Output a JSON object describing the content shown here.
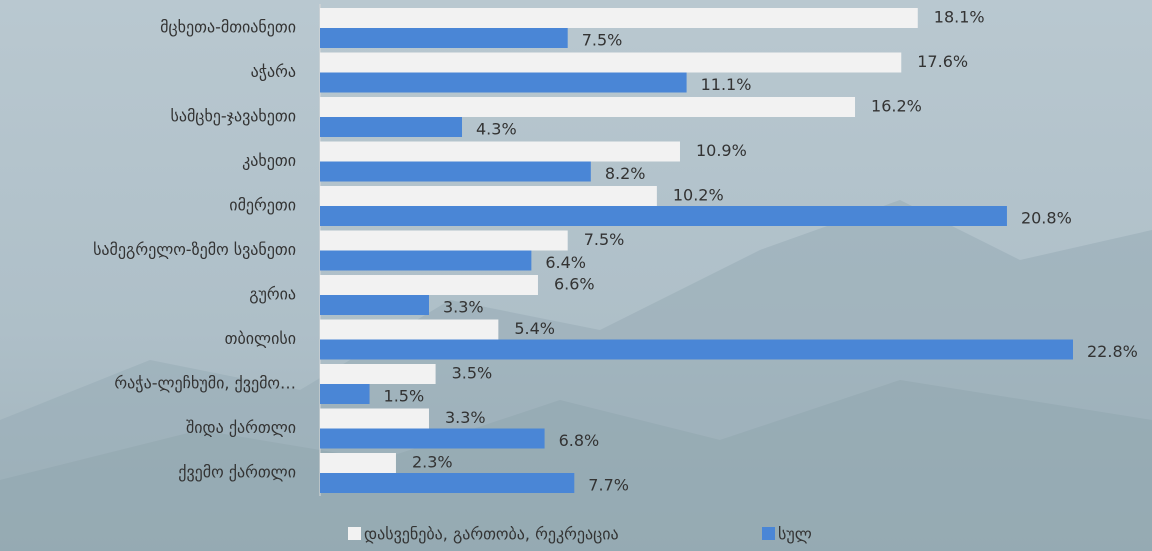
{
  "chart_data": {
    "type": "hbar",
    "categories": [
      "მცხეთა-მთიანეთი",
      "აჭარა",
      "სამცხე-ჯავახეთი",
      "კახეთი",
      "იმერეთი",
      "სამეგრელო-ზემო სვანეთი",
      "გურია",
      "თბილისი",
      "რაჭა-ლეჩხუმი, ქვემო…",
      "შიდა ქართლი",
      "ქვემო ქართლი"
    ],
    "series": [
      {
        "name": "დასვენება, გართობა, რეკრეაცია",
        "color": "#f2f2f2",
        "values": [
          18.1,
          17.6,
          16.2,
          10.9,
          10.2,
          7.5,
          6.6,
          5.4,
          3.5,
          3.3,
          2.3
        ],
        "value_labels": [
          "18.1%",
          "17.6%",
          "16.2%",
          "10.9%",
          "10.2%",
          "7.5%",
          "6.6%",
          "5.4%",
          "3.5%",
          "3.3%",
          "2.3%"
        ]
      },
      {
        "name": "სულ",
        "color": "#4a86d6",
        "values": [
          7.5,
          11.1,
          4.3,
          8.2,
          20.8,
          6.4,
          3.3,
          22.8,
          1.5,
          6.8,
          7.7
        ],
        "value_labels": [
          "7.5%",
          "11.1%",
          "4.3%",
          "8.2%",
          "20.8%",
          "6.4%",
          "3.3%",
          "22.8%",
          "1.5%",
          "6.8%",
          "7.7%"
        ]
      }
    ],
    "legend": "bottom"
  }
}
